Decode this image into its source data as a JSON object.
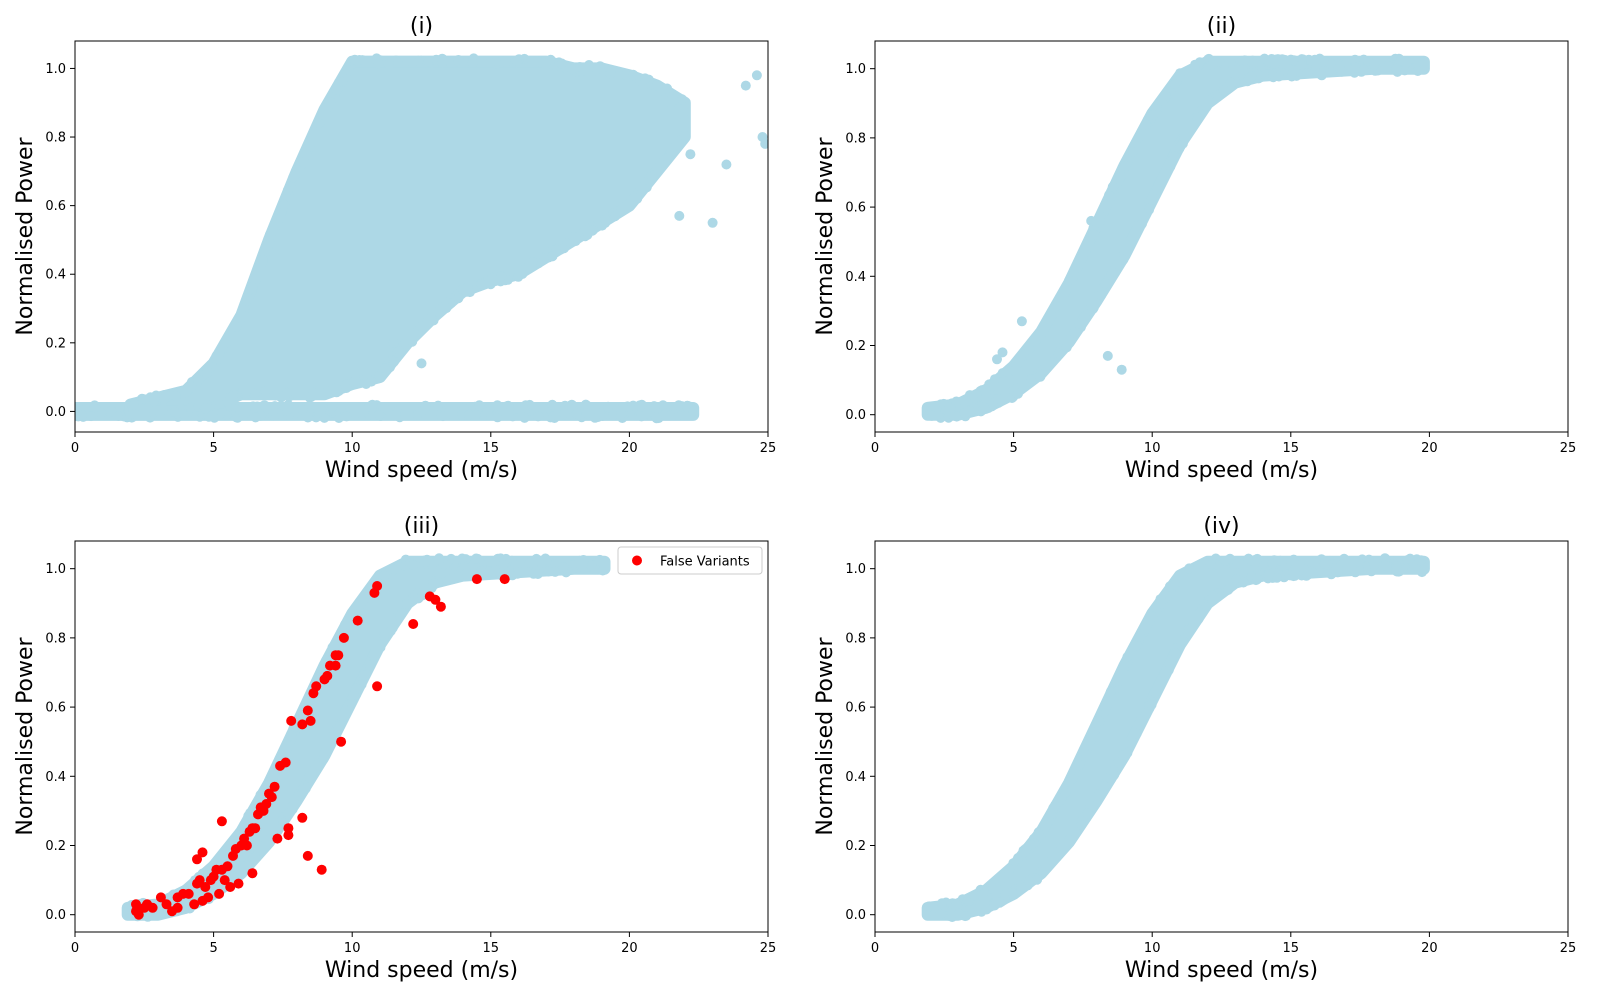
{
  "chart_data": [
    {
      "type": "scatter",
      "title": "(i)",
      "xlabel": "Wind speed (m/s)",
      "ylabel": "Normalised Power",
      "xlim": [
        0,
        25
      ],
      "ylim": [
        -0.06,
        1.08
      ],
      "xticks": [
        "0",
        "5",
        "10",
        "15",
        "20",
        "25"
      ],
      "yticks": [
        "0.0",
        "0.2",
        "0.4",
        "0.6",
        "0.8",
        "1.0"
      ],
      "grid": false,
      "legend": null,
      "series": [
        {
          "color": "#add8e6",
          "regions": [
            {
              "x": [
                0,
                22.3
              ],
              "ylow": [
                -0.01,
                -0.01
              ],
              "yhigh": [
                0.01,
                0.01
              ]
            },
            {
              "x": [
                2,
                4,
                5,
                6,
                7,
                8,
                9,
                10,
                11,
                12,
                13,
                14,
                15,
                16,
                17,
                18,
                19,
                20,
                21,
                22
              ],
              "ylow": [
                0.0,
                0.0,
                0.02,
                0.05,
                0.05,
                0.05,
                0.05,
                0.08,
                0.1,
                0.2,
                0.28,
                0.35,
                0.38,
                0.4,
                0.45,
                0.5,
                0.55,
                0.6,
                0.7,
                0.8
              ],
              "yhigh": [
                0.02,
                0.06,
                0.14,
                0.28,
                0.5,
                0.7,
                0.88,
                1.02,
                1.02,
                1.02,
                1.02,
                1.02,
                1.02,
                1.02,
                1.02,
                1.0,
                1.0,
                0.98,
                0.95,
                0.9
              ]
            }
          ],
          "points": [
            [
              12.5,
              0.14
            ],
            [
              11.5,
              0.2
            ],
            [
              10.5,
              0.08
            ],
            [
              22.3,
              0.0
            ],
            [
              23.5,
              0.72
            ],
            [
              24.2,
              0.95
            ],
            [
              24.8,
              0.8
            ],
            [
              24.9,
              0.78
            ],
            [
              24.6,
              0.98
            ],
            [
              22,
              0.85
            ],
            [
              21.5,
              0.9
            ],
            [
              23,
              0.55
            ],
            [
              21.8,
              0.57
            ],
            [
              22.2,
              0.75
            ]
          ]
        }
      ]
    },
    {
      "type": "scatter",
      "title": "(ii)",
      "xlabel": "Wind speed (m/s)",
      "ylabel": "Normalised Power",
      "xlim": [
        0,
        25
      ],
      "ylim": [
        -0.05,
        1.08
      ],
      "xticks": [
        "0",
        "5",
        "10",
        "15",
        "20",
        "25"
      ],
      "yticks": [
        "0.0",
        "0.2",
        "0.4",
        "0.6",
        "0.8",
        "1.0"
      ],
      "grid": false,
      "legend": null,
      "series": [
        {
          "color": "#add8e6",
          "regions": [
            {
              "x": [
                1.9,
                3,
                4,
                5,
                6,
                7,
                8,
                9,
                10,
                11,
                12,
                13,
                14,
                16,
                18,
                19.8
              ],
              "ylow": [
                0.0,
                0.0,
                0.02,
                0.06,
                0.12,
                0.21,
                0.33,
                0.46,
                0.62,
                0.78,
                0.9,
                0.96,
                0.98,
                0.99,
                1.0,
                1.0
              ],
              "yhigh": [
                0.02,
                0.03,
                0.07,
                0.14,
                0.24,
                0.38,
                0.55,
                0.72,
                0.87,
                0.98,
                1.02,
                1.02,
                1.02,
                1.02,
                1.02,
                1.02
              ]
            }
          ],
          "points": [
            [
              5.3,
              0.27
            ],
            [
              8.4,
              0.17
            ],
            [
              8.9,
              0.13
            ],
            [
              7.8,
              0.56
            ],
            [
              4.6,
              0.18
            ],
            [
              4.4,
              0.16
            ],
            [
              9.5,
              0.8
            ],
            [
              18,
              1.01
            ],
            [
              18.8,
              1.0
            ],
            [
              19.8,
              1.0
            ]
          ]
        }
      ]
    },
    {
      "type": "scatter",
      "title": "(iii)",
      "xlabel": "Wind speed (m/s)",
      "ylabel": "Normalised Power",
      "xlim": [
        0,
        25
      ],
      "ylim": [
        -0.05,
        1.08
      ],
      "xticks": [
        "0",
        "5",
        "10",
        "15",
        "20",
        "25"
      ],
      "yticks": [
        "0.0",
        "0.2",
        "0.4",
        "0.6",
        "0.8",
        "1.0"
      ],
      "grid": false,
      "legend": {
        "position": "top-right",
        "entries": [
          "False Variants"
        ]
      },
      "series": [
        {
          "color": "#add8e6",
          "regions": [
            {
              "x": [
                1.9,
                3,
                4,
                5,
                6,
                7,
                8,
                9,
                10,
                11,
                12,
                13,
                14,
                16,
                18,
                19.1
              ],
              "ylow": [
                0.0,
                0.0,
                0.02,
                0.06,
                0.12,
                0.21,
                0.33,
                0.46,
                0.62,
                0.78,
                0.9,
                0.96,
                0.98,
                0.99,
                1.0,
                1.0
              ],
              "yhigh": [
                0.02,
                0.03,
                0.07,
                0.14,
                0.24,
                0.38,
                0.55,
                0.72,
                0.87,
                0.98,
                1.02,
                1.02,
                1.02,
                1.02,
                1.02,
                1.02
              ]
            }
          ],
          "points": [
            [
              18.3,
              1.01
            ],
            [
              19.1,
              1.0
            ]
          ]
        },
        {
          "name": "False Variants",
          "color": "#ff0000",
          "points": [
            [
              2.2,
              0.03
            ],
            [
              2.2,
              0.01
            ],
            [
              2.3,
              0.0
            ],
            [
              2.5,
              0.02
            ],
            [
              2.6,
              0.03
            ],
            [
              2.8,
              0.02
            ],
            [
              3.1,
              0.05
            ],
            [
              3.3,
              0.03
            ],
            [
              3.5,
              0.01
            ],
            [
              3.7,
              0.02
            ],
            [
              3.7,
              0.05
            ],
            [
              3.9,
              0.06
            ],
            [
              4.1,
              0.06
            ],
            [
              4.3,
              0.03
            ],
            [
              4.4,
              0.09
            ],
            [
              4.5,
              0.1
            ],
            [
              4.6,
              0.04
            ],
            [
              4.7,
              0.08
            ],
            [
              4.8,
              0.05
            ],
            [
              4.9,
              0.1
            ],
            [
              5.0,
              0.11
            ],
            [
              5.1,
              0.13
            ],
            [
              5.2,
              0.06
            ],
            [
              5.3,
              0.13
            ],
            [
              5.3,
              0.27
            ],
            [
              5.4,
              0.1
            ],
            [
              5.5,
              0.14
            ],
            [
              5.6,
              0.08
            ],
            [
              5.7,
              0.17
            ],
            [
              5.8,
              0.19
            ],
            [
              5.9,
              0.09
            ],
            [
              6.0,
              0.2
            ],
            [
              6.1,
              0.22
            ],
            [
              6.2,
              0.2
            ],
            [
              6.3,
              0.24
            ],
            [
              6.4,
              0.12
            ],
            [
              6.4,
              0.25
            ],
            [
              6.5,
              0.25
            ],
            [
              6.6,
              0.29
            ],
            [
              6.8,
              0.3
            ],
            [
              6.9,
              0.32
            ],
            [
              7.0,
              0.35
            ],
            [
              7.1,
              0.34
            ],
            [
              7.2,
              0.37
            ],
            [
              7.3,
              0.22
            ],
            [
              7.4,
              0.43
            ],
            [
              7.6,
              0.44
            ],
            [
              7.7,
              0.25
            ],
            [
              7.7,
              0.23
            ],
            [
              7.8,
              0.56
            ],
            [
              8.2,
              0.55
            ],
            [
              8.2,
              0.28
            ],
            [
              8.4,
              0.59
            ],
            [
              8.4,
              0.17
            ],
            [
              8.5,
              0.56
            ],
            [
              8.6,
              0.64
            ],
            [
              8.7,
              0.66
            ],
            [
              8.9,
              0.13
            ],
            [
              9.0,
              0.68
            ],
            [
              9.1,
              0.69
            ],
            [
              9.2,
              0.72
            ],
            [
              9.4,
              0.72
            ],
            [
              9.4,
              0.75
            ],
            [
              9.5,
              0.75
            ],
            [
              9.6,
              0.5
            ],
            [
              9.7,
              0.8
            ],
            [
              10.2,
              0.85
            ],
            [
              10.8,
              0.93
            ],
            [
              10.9,
              0.95
            ],
            [
              10.9,
              0.66
            ],
            [
              12.2,
              0.84
            ],
            [
              12.8,
              0.92
            ],
            [
              13.0,
              0.91
            ],
            [
              13.2,
              0.89
            ],
            [
              14.5,
              0.97
            ],
            [
              15.5,
              0.97
            ],
            [
              4.6,
              0.18
            ],
            [
              4.4,
              0.16
            ],
            [
              6.7,
              0.31
            ]
          ]
        }
      ]
    },
    {
      "type": "scatter",
      "title": "(iv)",
      "xlabel": "Wind speed (m/s)",
      "ylabel": "Normalised Power",
      "xlim": [
        0,
        25
      ],
      "ylim": [
        -0.05,
        1.08
      ],
      "xticks": [
        "0",
        "5",
        "10",
        "15",
        "20",
        "25"
      ],
      "yticks": [
        "0.0",
        "0.2",
        "0.4",
        "0.6",
        "0.8",
        "1.0"
      ],
      "grid": false,
      "legend": null,
      "series": [
        {
          "color": "#add8e6",
          "regions": [
            {
              "x": [
                1.9,
                3,
                4,
                5,
                6,
                7,
                8,
                9,
                10,
                11,
                12,
                13,
                14,
                16,
                18,
                19.8
              ],
              "ylow": [
                0.0,
                0.0,
                0.02,
                0.06,
                0.12,
                0.21,
                0.33,
                0.46,
                0.62,
                0.78,
                0.9,
                0.96,
                0.98,
                0.99,
                1.0,
                1.0
              ],
              "yhigh": [
                0.02,
                0.03,
                0.07,
                0.14,
                0.24,
                0.38,
                0.55,
                0.72,
                0.87,
                0.98,
                1.02,
                1.02,
                1.02,
                1.02,
                1.02,
                1.02
              ]
            }
          ],
          "points": [
            [
              18,
              1.01
            ],
            [
              18.8,
              1.0
            ],
            [
              19.8,
              1.0
            ],
            [
              17.2,
              1.01
            ]
          ]
        }
      ]
    }
  ]
}
